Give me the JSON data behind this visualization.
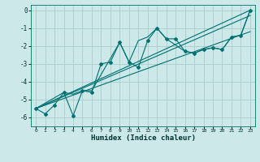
{
  "xlabel": "Humidex (Indice chaleur)",
  "bg_color": "#cce8e8",
  "grid_color": "#aacccc",
  "line_color": "#007070",
  "xlim": [
    -0.5,
    23.5
  ],
  "ylim": [
    -6.5,
    0.3
  ],
  "xticks": [
    0,
    1,
    2,
    3,
    4,
    5,
    6,
    7,
    8,
    9,
    10,
    11,
    12,
    13,
    14,
    15,
    16,
    17,
    18,
    19,
    20,
    21,
    22,
    23
  ],
  "yticks": [
    0,
    -1,
    -2,
    -3,
    -4,
    -5,
    -6
  ],
  "main_line": {
    "x": [
      0,
      1,
      2,
      3,
      4,
      5,
      6,
      7,
      8,
      9,
      10,
      11,
      12,
      13,
      14,
      15,
      16,
      17,
      18,
      19,
      20,
      21,
      22,
      23
    ],
    "y": [
      -5.5,
      -5.8,
      -5.3,
      -4.6,
      -5.9,
      -4.5,
      -4.6,
      -3.0,
      -2.9,
      -1.8,
      -2.9,
      -3.2,
      -1.7,
      -1.0,
      -1.6,
      -1.6,
      -2.3,
      -2.4,
      -2.2,
      -2.1,
      -2.2,
      -1.5,
      -1.4,
      0.0
    ]
  },
  "second_line": {
    "x": [
      0,
      3,
      4,
      5,
      6,
      9,
      10,
      11,
      12,
      13,
      14,
      16,
      17,
      18,
      19,
      20,
      21,
      22,
      23
    ],
    "y": [
      -5.5,
      -4.6,
      -4.7,
      -4.5,
      -4.5,
      -1.8,
      -2.9,
      -1.7,
      -1.5,
      -1.0,
      -1.6,
      -2.3,
      -2.4,
      -2.2,
      -2.1,
      -2.2,
      -1.5,
      -1.4,
      0.0
    ]
  },
  "trend_lines": [
    {
      "x": [
        0,
        23
      ],
      "y": [
        -5.5,
        0.0
      ]
    },
    {
      "x": [
        0,
        23
      ],
      "y": [
        -5.5,
        -0.3
      ]
    },
    {
      "x": [
        0,
        23
      ],
      "y": [
        -5.5,
        -1.2
      ]
    }
  ]
}
